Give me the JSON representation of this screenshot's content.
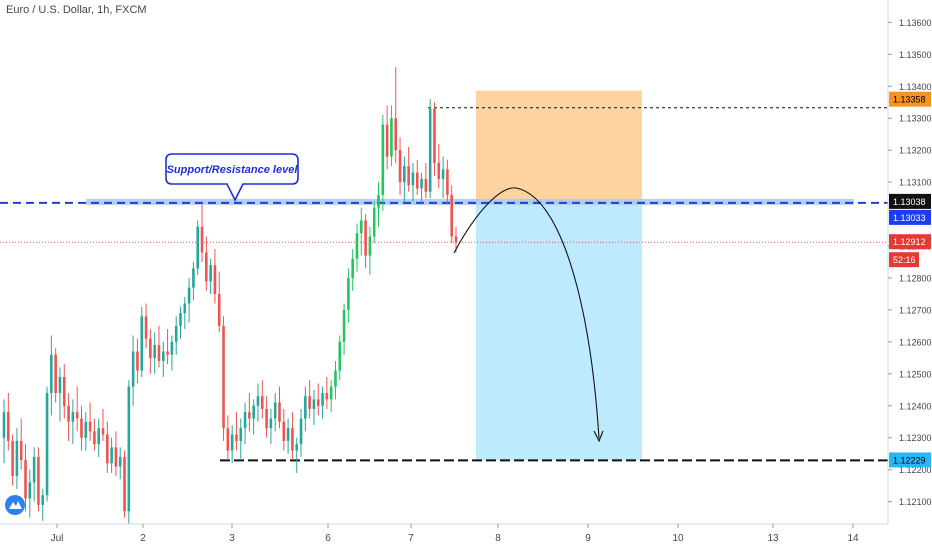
{
  "header": {
    "title": "Euro / U.S. Dollar, 1h, FXCM"
  },
  "colors": {
    "up": "#26a69a",
    "up_bright": "#22c55e",
    "down": "#ef5350",
    "support_band": "#a8c8f0",
    "support_line": "#1e3fd6",
    "stop_zone": "#fdd4a0",
    "target_zone": "#bdeafc",
    "last_price_line": "#ef5350",
    "axis_text": "#434651"
  },
  "annotation": {
    "label": "Support/Resistance level"
  },
  "badges": {
    "stop": "1.13358",
    "level": "1.13038",
    "level2": "1.13033",
    "last": "1.12912",
    "countdown": "52:16",
    "target": "1.12229"
  },
  "chart_data": {
    "type": "candlestick",
    "title": "Euro / U.S. Dollar, 1h, FXCM",
    "x_ticks": [
      "Jul",
      "2",
      "3",
      "6",
      "7",
      "8",
      "9",
      "10",
      "13",
      "14"
    ],
    "y_ticks": [
      "1.13600",
      "1.13500",
      "1.13400",
      "1.13300",
      "1.13200",
      "1.13100",
      "1.12900",
      "1.12800",
      "1.12700",
      "1.12600",
      "1.12500",
      "1.12400",
      "1.12300",
      "1.12200",
      "1.12100"
    ],
    "ylim": [
      1.1203,
      1.1367
    ],
    "levels": {
      "support_resistance": 1.13035,
      "stop_loss": 1.13358,
      "take_profit": 1.12229,
      "last_price": 1.12912
    },
    "candles": [
      [
        1.123,
        1.1242,
        1.1222,
        1.1238
      ],
      [
        1.1238,
        1.1244,
        1.1226,
        1.1229
      ],
      [
        1.1229,
        1.1231,
        1.1215,
        1.1218
      ],
      [
        1.1218,
        1.1233,
        1.1214,
        1.1229
      ],
      [
        1.1229,
        1.1236,
        1.122,
        1.1223
      ],
      [
        1.1223,
        1.1228,
        1.1207,
        1.1211
      ],
      [
        1.1211,
        1.122,
        1.1205,
        1.1216
      ],
      [
        1.1216,
        1.1227,
        1.121,
        1.1224
      ],
      [
        1.1224,
        1.1227,
        1.1207,
        1.1209
      ],
      [
        1.1209,
        1.1214,
        1.1204,
        1.1212
      ],
      [
        1.1212,
        1.1246,
        1.121,
        1.1244
      ],
      [
        1.1244,
        1.1262,
        1.1237,
        1.1256
      ],
      [
        1.1256,
        1.1258,
        1.1241,
        1.1244
      ],
      [
        1.1244,
        1.1252,
        1.1235,
        1.1249
      ],
      [
        1.1249,
        1.1253,
        1.1236,
        1.124
      ],
      [
        1.124,
        1.1244,
        1.1229,
        1.1235
      ],
      [
        1.1235,
        1.1242,
        1.1228,
        1.1238
      ],
      [
        1.1238,
        1.1246,
        1.1232,
        1.1236
      ],
      [
        1.1236,
        1.124,
        1.1226,
        1.123
      ],
      [
        1.123,
        1.1238,
        1.1226,
        1.1235
      ],
      [
        1.1235,
        1.1241,
        1.1229,
        1.1232
      ],
      [
        1.1232,
        1.1236,
        1.1226,
        1.1228
      ],
      [
        1.1228,
        1.1236,
        1.1224,
        1.1233
      ],
      [
        1.1233,
        1.1239,
        1.1229,
        1.1231
      ],
      [
        1.1231,
        1.1235,
        1.1219,
        1.1222
      ],
      [
        1.1222,
        1.123,
        1.1219,
        1.1227
      ],
      [
        1.1227,
        1.1232,
        1.1218,
        1.1221
      ],
      [
        1.1221,
        1.1227,
        1.1217,
        1.1224
      ],
      [
        1.1224,
        1.1226,
        1.1205,
        1.1207
      ],
      [
        1.1207,
        1.1248,
        1.1203,
        1.1246
      ],
      [
        1.1246,
        1.1262,
        1.124,
        1.1257
      ],
      [
        1.1257,
        1.1261,
        1.1247,
        1.1251
      ],
      [
        1.1251,
        1.1271,
        1.1249,
        1.1268
      ],
      [
        1.1268,
        1.1272,
        1.1258,
        1.1261
      ],
      [
        1.1261,
        1.1264,
        1.125,
        1.1255
      ],
      [
        1.1255,
        1.1263,
        1.125,
        1.1259
      ],
      [
        1.1259,
        1.1265,
        1.1252,
        1.1254
      ],
      [
        1.1254,
        1.126,
        1.1249,
        1.1257
      ],
      [
        1.1257,
        1.1264,
        1.1253,
        1.1256
      ],
      [
        1.1256,
        1.1262,
        1.1251,
        1.126
      ],
      [
        1.126,
        1.1268,
        1.1256,
        1.1265
      ],
      [
        1.1265,
        1.1271,
        1.1261,
        1.1269
      ],
      [
        1.1269,
        1.1274,
        1.1264,
        1.1272
      ],
      [
        1.1272,
        1.128,
        1.1266,
        1.1277
      ],
      [
        1.1277,
        1.1285,
        1.1273,
        1.1283
      ],
      [
        1.1283,
        1.1298,
        1.1281,
        1.1296
      ],
      [
        1.1296,
        1.1303,
        1.1285,
        1.1288
      ],
      [
        1.1288,
        1.1293,
        1.1276,
        1.1279
      ],
      [
        1.1279,
        1.1286,
        1.1275,
        1.1284
      ],
      [
        1.1284,
        1.1289,
        1.1272,
        1.1275
      ],
      [
        1.1275,
        1.1282,
        1.1263,
        1.1265
      ],
      [
        1.1265,
        1.1268,
        1.1229,
        1.1233
      ],
      [
        1.1233,
        1.1237,
        1.1223,
        1.1226
      ],
      [
        1.1226,
        1.1234,
        1.1222,
        1.1231
      ],
      [
        1.1231,
        1.1238,
        1.1226,
        1.1229
      ],
      [
        1.1229,
        1.1236,
        1.1223,
        1.1233
      ],
      [
        1.1233,
        1.1241,
        1.1228,
        1.1238
      ],
      [
        1.1238,
        1.1244,
        1.1232,
        1.1236
      ],
      [
        1.1236,
        1.1242,
        1.1231,
        1.124
      ],
      [
        1.124,
        1.1247,
        1.1235,
        1.1243
      ],
      [
        1.1243,
        1.1248,
        1.1236,
        1.1239
      ],
      [
        1.1239,
        1.1243,
        1.123,
        1.1233
      ],
      [
        1.1233,
        1.1239,
        1.1228,
        1.1236
      ],
      [
        1.1236,
        1.1244,
        1.1232,
        1.1241
      ],
      [
        1.1241,
        1.1246,
        1.1233,
        1.1235
      ],
      [
        1.1235,
        1.1239,
        1.1226,
        1.1229
      ],
      [
        1.1229,
        1.1236,
        1.1225,
        1.1233
      ],
      [
        1.1233,
        1.1238,
        1.1223,
        1.1226
      ],
      [
        1.1226,
        1.123,
        1.1219,
        1.1228
      ],
      [
        1.1228,
        1.1239,
        1.1224,
        1.1236
      ],
      [
        1.1236,
        1.1246,
        1.1232,
        1.1243
      ],
      [
        1.1243,
        1.1248,
        1.1236,
        1.1239
      ],
      [
        1.1239,
        1.1245,
        1.1234,
        1.1242
      ],
      [
        1.1242,
        1.1247,
        1.1237,
        1.124
      ],
      [
        1.124,
        1.1246,
        1.1236,
        1.1244
      ],
      [
        1.1244,
        1.1249,
        1.1239,
        1.1242
      ],
      [
        1.1242,
        1.1248,
        1.1238,
        1.1246
      ],
      [
        1.1246,
        1.1254,
        1.1242,
        1.1251
      ],
      [
        1.1251,
        1.1262,
        1.1248,
        1.126
      ],
      [
        1.126,
        1.1272,
        1.1256,
        1.127
      ],
      [
        1.127,
        1.1283,
        1.1266,
        1.128
      ],
      [
        1.128,
        1.1289,
        1.1276,
        1.1286
      ],
      [
        1.1286,
        1.1297,
        1.1282,
        1.1294
      ],
      [
        1.1294,
        1.1302,
        1.1287,
        1.1298
      ],
      [
        1.1298,
        1.13,
        1.1283,
        1.1287
      ],
      [
        1.1287,
        1.1296,
        1.1281,
        1.1293
      ],
      [
        1.1293,
        1.1304,
        1.1291,
        1.1302
      ],
      [
        1.1302,
        1.131,
        1.1296,
        1.1306
      ],
      [
        1.1306,
        1.1331,
        1.1301,
        1.1328
      ],
      [
        1.1328,
        1.1334,
        1.1314,
        1.1318
      ],
      [
        1.1318,
        1.1334,
        1.1315,
        1.133
      ],
      [
        1.133,
        1.1346,
        1.1316,
        1.132
      ],
      [
        1.132,
        1.1324,
        1.1306,
        1.131
      ],
      [
        1.131,
        1.1318,
        1.1304,
        1.1315
      ],
      [
        1.1315,
        1.1321,
        1.1307,
        1.1309
      ],
      [
        1.1309,
        1.1316,
        1.1304,
        1.1313
      ],
      [
        1.1313,
        1.1317,
        1.1306,
        1.1308
      ],
      [
        1.1308,
        1.1313,
        1.1303,
        1.1311
      ],
      [
        1.1311,
        1.1316,
        1.1305,
        1.1307
      ],
      [
        1.1307,
        1.1336,
        1.1305,
        1.1333
      ],
      [
        1.1333,
        1.1335,
        1.1312,
        1.1316
      ],
      [
        1.1316,
        1.1322,
        1.1308,
        1.1311
      ],
      [
        1.1311,
        1.1318,
        1.1305,
        1.1314
      ],
      [
        1.1314,
        1.1317,
        1.1303,
        1.1306
      ],
      [
        1.1306,
        1.1309,
        1.1291,
        1.1293
      ],
      [
        1.1293,
        1.1296,
        1.1288,
        1.12912
      ]
    ]
  }
}
